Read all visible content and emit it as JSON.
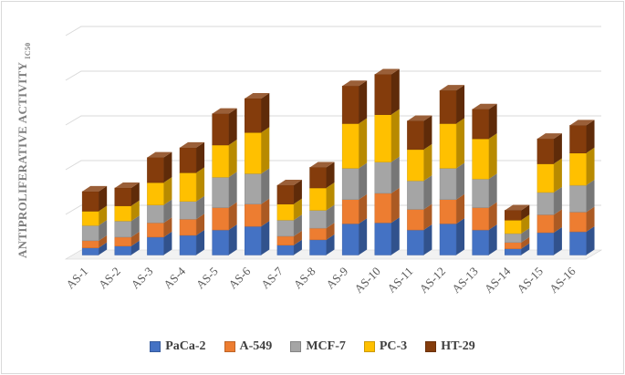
{
  "chart_data": {
    "type": "bar",
    "stacked": true,
    "title": "",
    "ylabel": "ANTIPROLIFERATIVE ACTIVITY",
    "ylabel_sub": "IC50",
    "xlabel": "",
    "ylim": [
      0,
      250
    ],
    "gridlines": true,
    "legend_position": "bottom",
    "categories": [
      "AS-1",
      "AS-2",
      "AS-3",
      "AS-4",
      "AS-5",
      "AS-6",
      "AS-7",
      "AS-8",
      "AS-9",
      "AS-10",
      "AS-11",
      "AS-12",
      "AS-13",
      "AS-14",
      "AS-15",
      "AS-16"
    ],
    "series": [
      {
        "name": "PaCa-2",
        "color": "#4472c4",
        "values": [
          8,
          10,
          20,
          22,
          28,
          32,
          11,
          17,
          35,
          36,
          28,
          35,
          28,
          7,
          25,
          26
        ]
      },
      {
        "name": "A-549",
        "color": "#ed7d31",
        "values": [
          8,
          10,
          16,
          18,
          25,
          25,
          10,
          13,
          27,
          33,
          23,
          27,
          25,
          7,
          20,
          22
        ]
      },
      {
        "name": "MCF-7",
        "color": "#a5a5a5",
        "values": [
          17,
          18,
          20,
          20,
          34,
          34,
          18,
          20,
          35,
          35,
          32,
          35,
          32,
          10,
          25,
          30
        ]
      },
      {
        "name": "PC-3",
        "color": "#ffc000",
        "values": [
          16,
          17,
          25,
          32,
          36,
          46,
          18,
          25,
          50,
          53,
          35,
          50,
          45,
          15,
          32,
          36
        ]
      },
      {
        "name": "HT-29",
        "color": "#843c0c",
        "values": [
          22,
          20,
          28,
          28,
          35,
          38,
          21,
          23,
          42,
          45,
          32,
          37,
          33,
          11,
          28,
          31
        ]
      }
    ]
  }
}
